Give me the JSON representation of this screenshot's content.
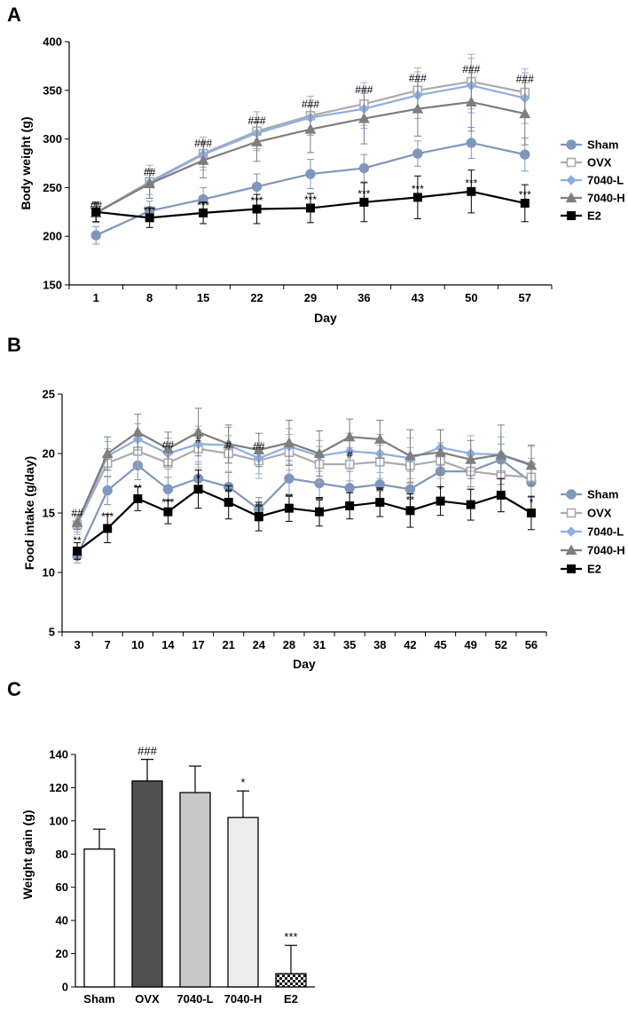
{
  "figure": {
    "panel_labels": [
      "A",
      "B",
      "C"
    ]
  },
  "colors": {
    "Sham": "#7f96bd",
    "OVX": "#ababab",
    "7040-L": "#8eaee0",
    "7040-H": "#7e7e7e",
    "E2": "#000000",
    "bar_fills": [
      "#ffffff",
      "#505050",
      "#c8c8c8",
      "#ececec",
      "#333333"
    ]
  },
  "chart_data": [
    {
      "panel": "A",
      "type": "line",
      "title": "",
      "xlabel": "Day",
      "ylabel": "Body weight (g)",
      "x": [
        1,
        8,
        15,
        22,
        29,
        36,
        43,
        50,
        57
      ],
      "ylim": [
        150,
        400
      ],
      "yticks": [
        150,
        200,
        250,
        300,
        350,
        400
      ],
      "series": [
        {
          "name": "Sham",
          "marker": "circle",
          "values": [
            201,
            226,
            238,
            251,
            264,
            270,
            285,
            296,
            284
          ],
          "errors": [
            9,
            10,
            12,
            13,
            15,
            14,
            13,
            16,
            17
          ]
        },
        {
          "name": "OVX",
          "marker": "square-open",
          "values": [
            224,
            256,
            285,
            308,
            324,
            336,
            350,
            359,
            348
          ],
          "errors": [
            10,
            17,
            17,
            20,
            20,
            22,
            23,
            28,
            24
          ]
        },
        {
          "name": "7040-L",
          "marker": "diamond",
          "values": [
            224,
            255,
            284,
            306,
            322,
            331,
            345,
            355,
            342
          ],
          "errors": [
            10,
            12,
            13,
            16,
            18,
            20,
            24,
            28,
            26
          ]
        },
        {
          "name": "7040-H",
          "marker": "triangle",
          "values": [
            224,
            254,
            278,
            297,
            310,
            321,
            331,
            338,
            326
          ],
          "errors": [
            9,
            15,
            18,
            20,
            24,
            26,
            28,
            30,
            32
          ]
        },
        {
          "name": "E2",
          "marker": "square",
          "values": [
            225,
            219,
            224,
            228,
            229,
            235,
            240,
            246,
            234
          ],
          "errors": [
            10,
            10,
            11,
            15,
            15,
            20,
            22,
            22,
            19
          ]
        }
      ],
      "annotations": [
        {
          "x": 1,
          "y": 228,
          "text": "##"
        },
        {
          "x": 8,
          "y": 262,
          "text": "##"
        },
        {
          "x": 15,
          "y": 292,
          "text": "###"
        },
        {
          "x": 22,
          "y": 315,
          "text": "###"
        },
        {
          "x": 29,
          "y": 332,
          "text": "###"
        },
        {
          "x": 36,
          "y": 347,
          "text": "###"
        },
        {
          "x": 43,
          "y": 359,
          "text": "###"
        },
        {
          "x": 50,
          "y": 368,
          "text": "###"
        },
        {
          "x": 57,
          "y": 358,
          "text": "###"
        },
        {
          "x": 8,
          "y": 223,
          "text": "***"
        },
        {
          "x": 15,
          "y": 228,
          "text": "***"
        },
        {
          "x": 22,
          "y": 233,
          "text": "***"
        },
        {
          "x": 29,
          "y": 234,
          "text": "***"
        },
        {
          "x": 36,
          "y": 240,
          "text": "***"
        },
        {
          "x": 43,
          "y": 245,
          "text": "***"
        },
        {
          "x": 50,
          "y": 251,
          "text": "***"
        },
        {
          "x": 57,
          "y": 239,
          "text": "***"
        }
      ]
    },
    {
      "panel": "B",
      "type": "line",
      "title": "",
      "xlabel": "Day",
      "ylabel": "Food intake (g/day)",
      "x": [
        3,
        7,
        10,
        14,
        17,
        21,
        24,
        28,
        31,
        35,
        38,
        42,
        45,
        49,
        52,
        56
      ],
      "ylim": [
        5,
        25
      ],
      "yticks": [
        5,
        10,
        15,
        20,
        25
      ],
      "series": [
        {
          "name": "Sham",
          "marker": "circle",
          "values": [
            11.4,
            16.9,
            19.0,
            17.0,
            17.9,
            17.2,
            15.3,
            17.9,
            17.5,
            17.1,
            17.4,
            17.0,
            18.5,
            18.5,
            19.5,
            17.6
          ],
          "errors": [
            0.6,
            1.2,
            1.2,
            1.0,
            1.2,
            1.2,
            1.0,
            1.5,
            1.4,
            1.4,
            1.6,
            1.5,
            1.3,
            1.3,
            1.3,
            1.3
          ]
        },
        {
          "name": "OVX",
          "marker": "square-open",
          "values": [
            14.0,
            19.2,
            20.2,
            19.2,
            20.4,
            20.0,
            19.4,
            20.1,
            19.1,
            19.1,
            19.3,
            19.0,
            19.4,
            18.5,
            18.2,
            18.0
          ],
          "errors": [
            0.8,
            1.2,
            1.4,
            1.2,
            1.6,
            1.5,
            1.5,
            1.5,
            1.5,
            1.4,
            1.4,
            1.5,
            1.5,
            1.5,
            1.5,
            1.6
          ]
        },
        {
          "name": "7040-L",
          "marker": "diamond",
          "values": [
            14.0,
            19.8,
            21.2,
            20.0,
            20.8,
            20.7,
            19.6,
            20.6,
            19.8,
            20.2,
            20.0,
            19.6,
            20.5,
            20.0,
            19.9,
            19.1
          ],
          "errors": [
            0.6,
            1.2,
            1.3,
            1.3,
            1.5,
            1.5,
            1.3,
            1.5,
            1.3,
            1.5,
            1.6,
            1.7,
            1.5,
            1.5,
            1.5,
            1.5
          ]
        },
        {
          "name": "7040-H",
          "marker": "triangle",
          "values": [
            14.2,
            20.0,
            21.8,
            20.4,
            21.8,
            20.8,
            20.3,
            20.9,
            20.0,
            21.4,
            21.2,
            19.8,
            20.1,
            19.5,
            19.9,
            19.0
          ],
          "errors": [
            0.6,
            1.4,
            1.5,
            1.4,
            2.0,
            1.6,
            1.4,
            1.9,
            1.9,
            1.5,
            1.6,
            2.2,
            1.9,
            1.6,
            2.5,
            1.7
          ]
        },
        {
          "name": "E2",
          "marker": "square",
          "values": [
            11.8,
            13.7,
            16.2,
            15.1,
            17.0,
            15.9,
            14.7,
            15.4,
            15.1,
            15.6,
            15.9,
            15.2,
            16.0,
            15.7,
            16.5,
            15.0
          ],
          "errors": [
            0.7,
            1.2,
            1.0,
            1.0,
            1.6,
            1.4,
            1.2,
            1.1,
            1.2,
            1.1,
            1.2,
            1.4,
            1.2,
            1.3,
            1.4,
            1.4
          ]
        }
      ],
      "annotations": [
        {
          "x": 3,
          "y": 14.7,
          "text": "##"
        },
        {
          "x": 14,
          "y": 20.4,
          "text": "##"
        },
        {
          "x": 17,
          "y": 20.9,
          "text": "#"
        },
        {
          "x": 21,
          "y": 20.4,
          "text": "#"
        },
        {
          "x": 24,
          "y": 20.3,
          "text": "##"
        },
        {
          "x": 35,
          "y": 19.6,
          "text": "#"
        },
        {
          "x": 3,
          "y": 12.4,
          "text": "**"
        },
        {
          "x": 7,
          "y": 14.4,
          "text": "***"
        },
        {
          "x": 10,
          "y": 16.8,
          "text": "**"
        },
        {
          "x": 14,
          "y": 15.6,
          "text": "***"
        },
        {
          "x": 17,
          "y": 17.6,
          "text": "*"
        },
        {
          "x": 21,
          "y": 16.4,
          "text": "**"
        },
        {
          "x": 24,
          "y": 15.2,
          "text": "**"
        },
        {
          "x": 28,
          "y": 16.0,
          "text": "**"
        },
        {
          "x": 31,
          "y": 15.7,
          "text": "**"
        },
        {
          "x": 38,
          "y": 16.5,
          "text": "**"
        },
        {
          "x": 42,
          "y": 15.8,
          "text": "**"
        },
        {
          "x": 45,
          "y": 16.7,
          "text": "*"
        },
        {
          "x": 56,
          "y": 15.6,
          "text": "*"
        }
      ]
    },
    {
      "panel": "C",
      "type": "bar",
      "title": "",
      "xlabel": "",
      "ylabel": "Weight gain (g)",
      "categories": [
        "Sham",
        "OVX",
        "7040-L",
        "7040-H",
        "E2"
      ],
      "values": [
        83,
        124,
        117,
        102,
        8
      ],
      "errors": [
        12,
        13,
        16,
        16,
        17
      ],
      "significance": [
        "",
        "###",
        "",
        "*",
        "***"
      ],
      "ylim": [
        0,
        140
      ],
      "yticks": [
        0,
        20,
        40,
        60,
        80,
        100,
        120,
        140
      ]
    }
  ]
}
